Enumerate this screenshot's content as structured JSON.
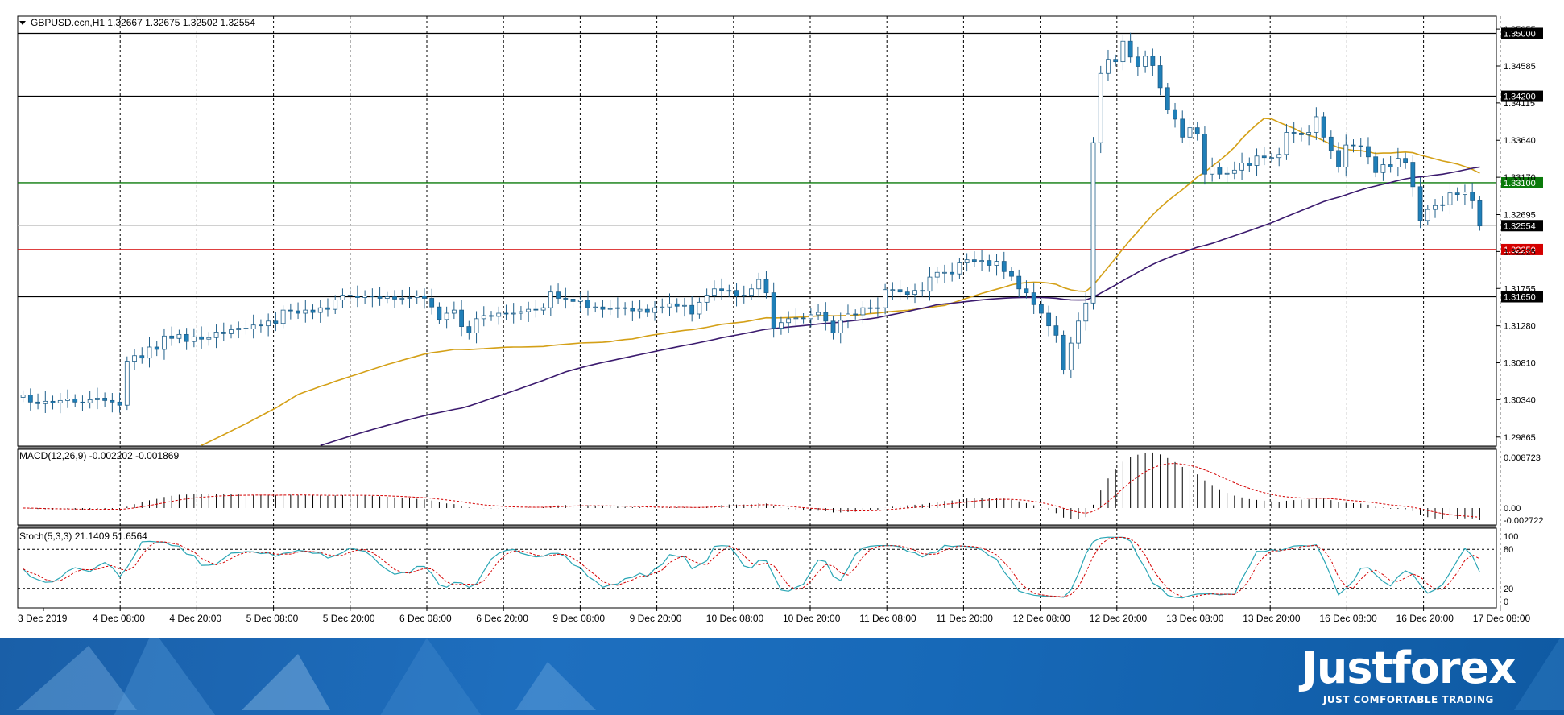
{
  "chart_data": {
    "type": "candlestick",
    "symbol_header": "GBPUSD.ecn,H1  1.32667 1.32675 1.32502 1.32554",
    "price_axis_ticks": [
      "1.35055",
      "1.34585",
      "1.34115",
      "1.33640",
      "1.33170",
      "1.32695",
      "1.32225",
      "1.31755",
      "1.31280",
      "1.30810",
      "1.30340",
      "1.29865"
    ],
    "price_range": [
      1.2975,
      1.3522
    ],
    "levels": [
      {
        "price": 1.35,
        "label": "1.35000",
        "color": "#000000"
      },
      {
        "price": 1.342,
        "label": "1.34200",
        "color": "#000000"
      },
      {
        "price": 1.331,
        "label": "1.33100",
        "color": "#0a7a0a"
      },
      {
        "price": 1.3225,
        "label": "1.32250",
        "color": "#d40000"
      },
      {
        "price": 1.3165,
        "label": "1.31650",
        "color": "#000000"
      }
    ],
    "current_price": {
      "price": 1.32554,
      "label": "1.32554"
    },
    "time_labels": [
      "3 Dec 2019",
      "4 Dec 08:00",
      "4 Dec 20:00",
      "5 Dec 08:00",
      "5 Dec 20:00",
      "6 Dec 08:00",
      "6 Dec 20:00",
      "9 Dec 08:00",
      "9 Dec 20:00",
      "10 Dec 08:00",
      "10 Dec 20:00",
      "11 Dec 08:00",
      "11 Dec 20:00",
      "12 Dec 08:00",
      "12 Dec 20:00",
      "13 Dec 08:00",
      "13 Dec 20:00",
      "16 Dec 08:00",
      "16 Dec 20:00",
      "17 Dec 08:00"
    ],
    "closes": [
      1.304,
      1.3031,
      1.3029,
      1.3032,
      1.303,
      1.3033,
      1.3035,
      1.3031,
      1.303,
      1.3034,
      1.3036,
      1.3033,
      1.3031,
      1.3027,
      1.3083,
      1.309,
      1.3087,
      1.3101,
      1.3098,
      1.3115,
      1.3112,
      1.3117,
      1.3108,
      1.3114,
      1.3111,
      1.3113,
      1.312,
      1.3118,
      1.3123,
      1.3125,
      1.3124,
      1.3129,
      1.3128,
      1.3134,
      1.3131,
      1.3148,
      1.3147,
      1.3144,
      1.3148,
      1.3145,
      1.3151,
      1.3149,
      1.3161,
      1.3167,
      1.3166,
      1.3164,
      1.3166,
      1.3165,
      1.3163,
      1.3165,
      1.3162,
      1.3163,
      1.3164,
      1.3166,
      1.3163,
      1.3152,
      1.3136,
      1.3144,
      1.3148,
      1.3127,
      1.3119,
      1.3137,
      1.3141,
      1.314,
      1.3144,
      1.3143,
      1.3144,
      1.3146,
      1.3149,
      1.3148,
      1.3151,
      1.3171,
      1.3163,
      1.3162,
      1.3159,
      1.3161,
      1.3151,
      1.3152,
      1.3149,
      1.315,
      1.3151,
      1.315,
      1.3147,
      1.3149,
      1.3145,
      1.3151,
      1.3152,
      1.3156,
      1.3153,
      1.3154,
      1.3143,
      1.3158,
      1.3167,
      1.3175,
      1.3173,
      1.3173,
      1.3166,
      1.3167,
      1.3175,
      1.3187,
      1.317,
      1.3125,
      1.3132,
      1.3137,
      1.3138,
      1.3137,
      1.3142,
      1.3145,
      1.3134,
      1.3119,
      1.3135,
      1.3143,
      1.3142,
      1.3151,
      1.3151,
      1.3151,
      1.3174,
      1.3174,
      1.3171,
      1.3168,
      1.3173,
      1.3172,
      1.319,
      1.3196,
      1.3196,
      1.3194,
      1.3208,
      1.3212,
      1.321,
      1.3211,
      1.3205,
      1.321,
      1.3197,
      1.3191,
      1.3175,
      1.317,
      1.3155,
      1.3144,
      1.3128,
      1.3116,
      1.3072,
      1.3106,
      1.3134,
      1.3157,
      1.3361,
      1.3449,
      1.3467,
      1.3464,
      1.349,
      1.347,
      1.3458,
      1.3471,
      1.3459,
      1.3431,
      1.3403,
      1.3391,
      1.3368,
      1.338,
      1.3372,
      1.3321,
      1.333,
      1.3321,
      1.3322,
      1.3326,
      1.3335,
      1.3332,
      1.3344,
      1.3342,
      1.3342,
      1.3346,
      1.3374,
      1.3373,
      1.3371,
      1.3374,
      1.3394,
      1.3368,
      1.3351,
      1.333,
      1.3358,
      1.3357,
      1.3356,
      1.3343,
      1.3323,
      1.3333,
      1.333,
      1.3341,
      1.3336,
      1.3305,
      1.3262,
      1.3276,
      1.3281,
      1.3282,
      1.3297,
      1.3295,
      1.3298,
      1.3287,
      1.3255
    ],
    "ma_fast_color": "#d4a017",
    "ma_slow_color": "#3b1a6e",
    "macd": {
      "label": "MACD(12,26,9) -0.002202 -0.001869",
      "ticks": [
        "0.008723",
        "0.00",
        "-0.002722"
      ]
    },
    "stoch": {
      "label": "Stoch(5,3,3) 21.1409 51.6564",
      "ticks": [
        "100",
        "80",
        "20",
        "0"
      ]
    },
    "candle_up_color": "#ffffff",
    "candle_down_color": "#1f7fb8",
    "grid": true
  },
  "brand": {
    "name": "Justforex",
    "tagline": "JUST COMFORTABLE TRADING"
  }
}
